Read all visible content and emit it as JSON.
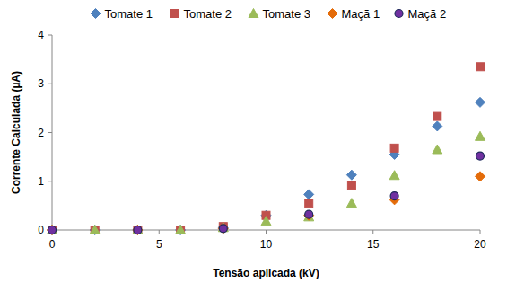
{
  "chart_data": {
    "type": "scatter",
    "x_label": "Tensão aplicada (kV)",
    "y_label": "Corrente Calculada (µA)",
    "xlim": [
      0,
      20
    ],
    "xticks": [
      0,
      5,
      10,
      15,
      20
    ],
    "ylim": [
      0,
      4
    ],
    "yticks": [
      0,
      1,
      2,
      3,
      4
    ],
    "grid": false,
    "legend": "top",
    "series": [
      {
        "name": "Tomate 1",
        "color": "#4f81bd",
        "marker": "diamond",
        "x": [
          0,
          2,
          4,
          6,
          8,
          10,
          12,
          14,
          16,
          18,
          20
        ],
        "values": [
          0,
          0,
          0,
          0,
          0.05,
          0.3,
          0.73,
          1.13,
          1.55,
          2.13,
          2.62
        ]
      },
      {
        "name": "Tomate 2",
        "color": "#c0504d",
        "marker": "square",
        "x": [
          0,
          2,
          4,
          6,
          8,
          10,
          12,
          14,
          16,
          18,
          20
        ],
        "values": [
          0,
          0,
          0,
          0,
          0.07,
          0.3,
          0.55,
          0.92,
          1.68,
          2.33,
          3.35
        ]
      },
      {
        "name": "Tomate 3",
        "color": "#9bbb59",
        "marker": "triangle",
        "x": [
          0,
          2,
          4,
          6,
          8,
          10,
          12,
          14,
          16,
          18,
          20
        ],
        "values": [
          0,
          0,
          0,
          0,
          0.05,
          0.18,
          0.27,
          0.55,
          1.12,
          1.65,
          1.92
        ]
      },
      {
        "name": "Maçã 1",
        "color": "#e46c0a",
        "marker": "diamond",
        "x": [
          0,
          4,
          8,
          12,
          16,
          20
        ],
        "values": [
          0,
          0,
          0.03,
          0.3,
          0.62,
          1.1
        ]
      },
      {
        "name": "Maçã 2",
        "color": "#7030a0",
        "marker": "circle",
        "x": [
          0,
          4,
          8,
          12,
          16,
          20
        ],
        "values": [
          0,
          0,
          0.03,
          0.32,
          0.7,
          1.52
        ]
      }
    ]
  }
}
